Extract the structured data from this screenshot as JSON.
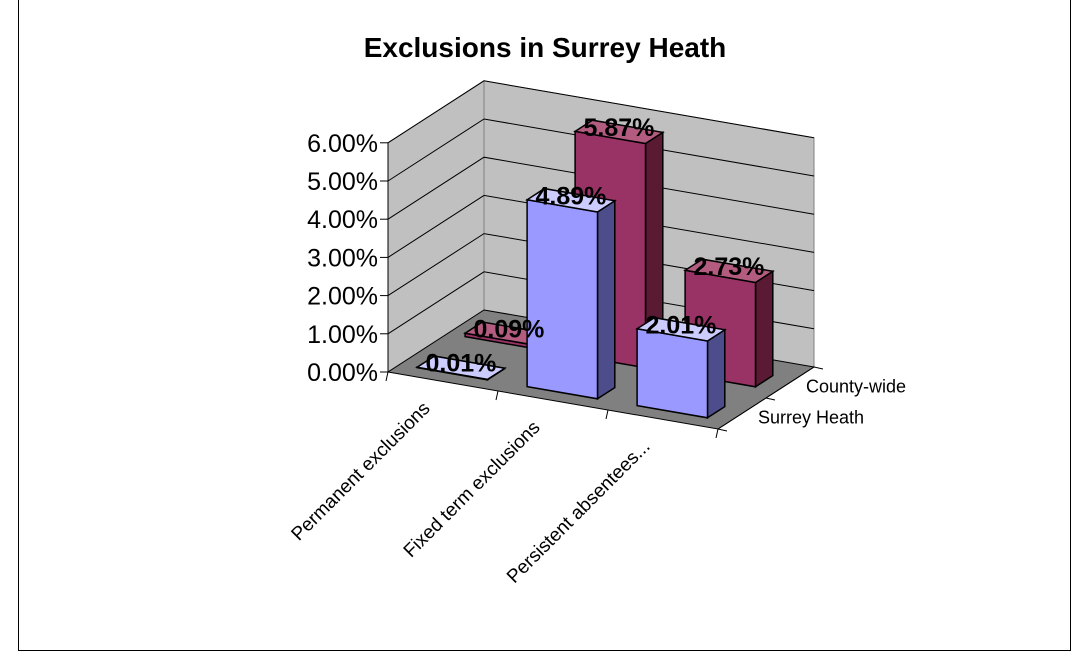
{
  "chart_data": {
    "type": "bar",
    "title": "Exclusions in Surrey Heath",
    "categories": [
      "Permanent exclusions",
      "Fixed term exclusions",
      "Persistent absentees..."
    ],
    "series": [
      {
        "name": "Surrey Heath",
        "values": [
          0.01,
          4.89,
          2.01
        ],
        "labels": [
          "0.01%",
          "4.89%",
          "2.01%"
        ]
      },
      {
        "name": "County-wide",
        "values": [
          0.09,
          5.87,
          2.73
        ],
        "labels": [
          "0.09%",
          "5.87%",
          "2.73%"
        ]
      }
    ],
    "y_ticks": [
      "0.00%",
      "1.00%",
      "2.00%",
      "3.00%",
      "4.00%",
      "5.00%",
      "6.00%"
    ],
    "ylim": [
      0,
      6
    ],
    "grid": true,
    "legend_position": "right",
    "colors": {
      "Surrey Heath": "#9999ff",
      "County-wide": "#993366",
      "walls": "#c0c0c0",
      "floor": "#808080"
    }
  }
}
